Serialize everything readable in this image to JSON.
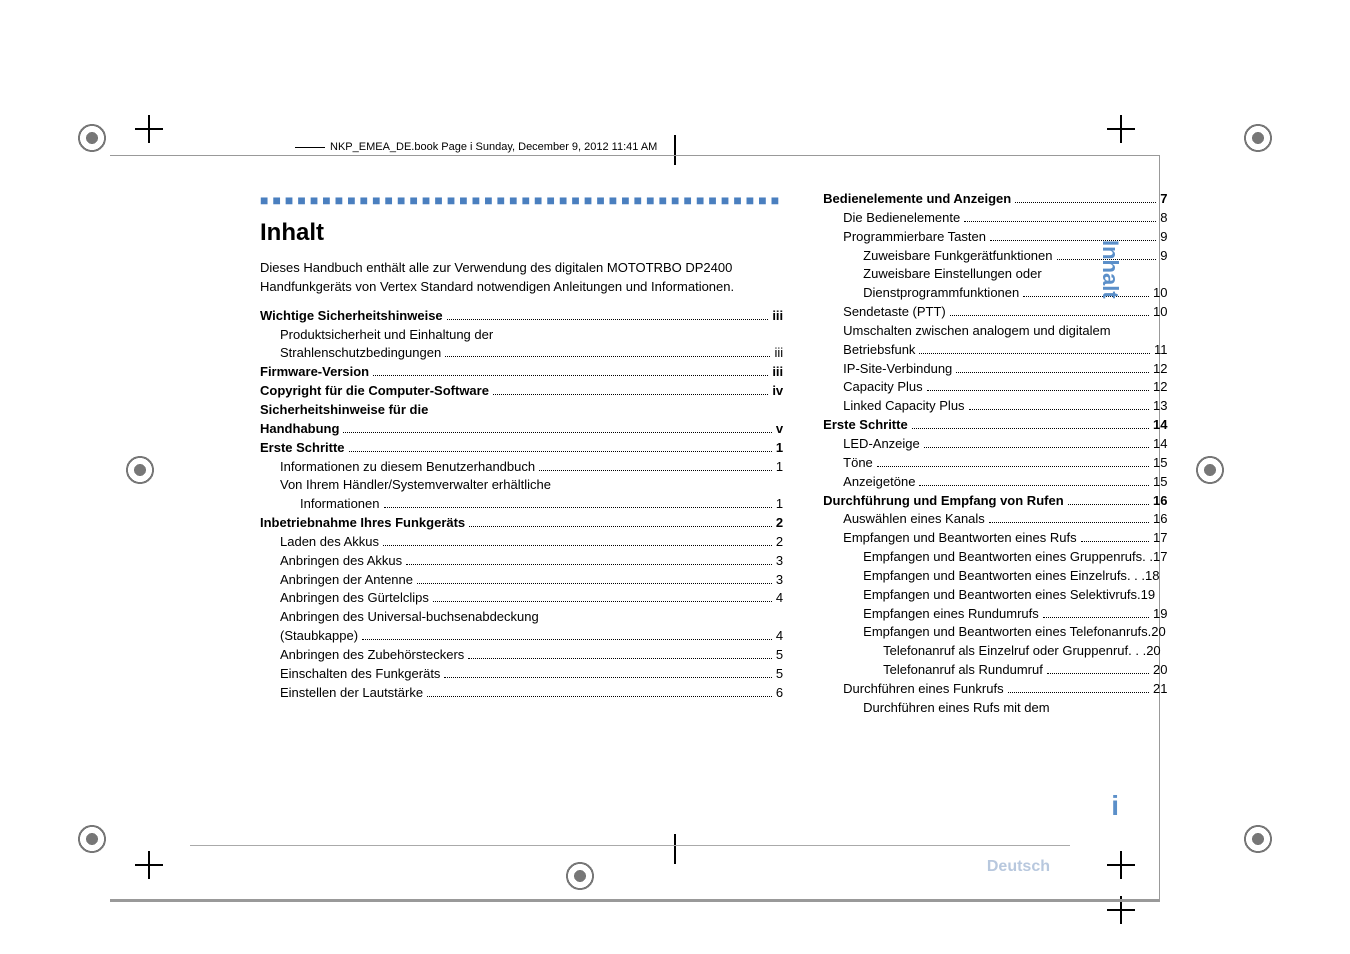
{
  "running_head": "NKP_EMEA_DE.book  Page i  Sunday, December 9, 2012  11:41 AM",
  "side_tab_title": "Inhalt",
  "side_page_num": "i",
  "lang_footer": "Deutsch",
  "colors": {
    "accent": "#5b8fc9",
    "deco_squares": "#4a7fbf",
    "footer_text": "#b8c8de"
  },
  "left_col": {
    "heading": "Inhalt",
    "intro": "Dieses Handbuch enthält alle zur Verwendung des digitalen MOTOTRBO DP2400 Handfunkgeräts von Vertex Standard notwendigen Anleitungen und Informationen.",
    "entries": [
      {
        "label": "Wichtige Sicherheitshinweise",
        "page": "iii",
        "level": 0,
        "bold": true
      },
      {
        "label": "Produktsicherheit und Einhaltung der",
        "page": "",
        "level": 1,
        "bold": false,
        "no_page": true
      },
      {
        "label": "Strahlenschutzbedingungen",
        "page": "iii",
        "level": 1,
        "bold": false,
        "cont": true
      },
      {
        "label": "Firmware-Version",
        "page": "iii",
        "level": 0,
        "bold": true
      },
      {
        "label": "Copyright für die Computer-Software",
        "page": "iv",
        "level": 0,
        "bold": true
      },
      {
        "label": "Sicherheitshinweise für die",
        "page": "",
        "level": 0,
        "bold": true,
        "no_page": true
      },
      {
        "label": "Handhabung",
        "page": "v",
        "level": 0,
        "bold": true,
        "cont": true
      },
      {
        "label": "Erste Schritte",
        "page": "1",
        "level": 0,
        "bold": true
      },
      {
        "label": "Informationen zu diesem Benutzerhandbuch",
        "page": "1",
        "level": 1,
        "bold": false
      },
      {
        "label": "Von Ihrem Händler/Systemverwalter erhältliche",
        "page": "",
        "level": 1,
        "bold": false,
        "no_page": true
      },
      {
        "label": "Informationen",
        "page": "1",
        "level": 2,
        "bold": false,
        "cont": true
      },
      {
        "label": "Inbetriebnahme Ihres Funkgeräts",
        "page": "2",
        "level": 0,
        "bold": true
      },
      {
        "label": "Laden des Akkus",
        "page": "2",
        "level": 1,
        "bold": false
      },
      {
        "label": "Anbringen des Akkus",
        "page": "3",
        "level": 1,
        "bold": false
      },
      {
        "label": "Anbringen der Antenne",
        "page": "3",
        "level": 1,
        "bold": false
      },
      {
        "label": "Anbringen des Gürtelclips",
        "page": "4",
        "level": 1,
        "bold": false
      },
      {
        "label": "Anbringen des Universal-buchsenabdeckung",
        "page": "",
        "level": 1,
        "bold": false,
        "no_page": true
      },
      {
        "label": "(Staubkappe)",
        "page": "4",
        "level": 1,
        "bold": false,
        "cont": true
      },
      {
        "label": "Anbringen des Zubehörsteckers",
        "page": "5",
        "level": 1,
        "bold": false
      },
      {
        "label": "Einschalten des Funkgeräts",
        "page": "5",
        "level": 1,
        "bold": false
      },
      {
        "label": "Einstellen der Lautstärke",
        "page": "6",
        "level": 1,
        "bold": false
      }
    ]
  },
  "right_col": {
    "entries": [
      {
        "label": "Bedienelemente und Anzeigen",
        "page": "7",
        "level": 0,
        "bold": true
      },
      {
        "label": "Die Bedienelemente",
        "page": "8",
        "level": 1,
        "bold": false
      },
      {
        "label": "Programmierbare Tasten",
        "page": "9",
        "level": 1,
        "bold": false
      },
      {
        "label": "Zuweisbare Funkgerätfunktionen",
        "page": "9",
        "level": 2,
        "bold": false
      },
      {
        "label": "Zuweisbare Einstellungen oder",
        "page": "",
        "level": 2,
        "bold": false,
        "no_page": true
      },
      {
        "label": "Dienstprogrammfunktionen",
        "page": "10",
        "level": 2,
        "bold": false,
        "cont": true
      },
      {
        "label": "Sendetaste (PTT)",
        "page": "10",
        "level": 1,
        "bold": false
      },
      {
        "label": "Umschalten zwischen analogem und digitalem",
        "page": "",
        "level": 1,
        "bold": false,
        "no_page": true
      },
      {
        "label": "Betriebsfunk",
        "page": "11",
        "level": 1,
        "bold": false,
        "cont": true
      },
      {
        "label": "IP-Site-Verbindung",
        "page": "12",
        "level": 1,
        "bold": false
      },
      {
        "label": "Capacity Plus",
        "page": "12",
        "level": 1,
        "bold": false
      },
      {
        "label": "Linked Capacity Plus",
        "page": "13",
        "level": 1,
        "bold": false
      },
      {
        "label": "Erste Schritte",
        "page": "14",
        "level": 0,
        "bold": true
      },
      {
        "label": "LED-Anzeige",
        "page": "14",
        "level": 1,
        "bold": false
      },
      {
        "label": "Töne",
        "page": "15",
        "level": 1,
        "bold": false
      },
      {
        "label": "Anzeigetöne",
        "page": "15",
        "level": 1,
        "bold": false
      },
      {
        "label": "Durchführung und Empfang von Rufen",
        "page": "16",
        "level": 0,
        "bold": true
      },
      {
        "label": "Auswählen eines Kanals",
        "page": "16",
        "level": 1,
        "bold": false
      },
      {
        "label": "Empfangen und Beantworten eines Rufs",
        "page": "17",
        "level": 1,
        "bold": false
      },
      {
        "label": "Empfangen und Beantworten eines Gruppenrufs",
        "page": "17",
        "level": 2,
        "bold": false,
        "sep": " . . "
      },
      {
        "label": "Empfangen und Beantworten eines Einzelrufs",
        "page": "18",
        "level": 2,
        "bold": false,
        "sep": "  . . .  "
      },
      {
        "label": "Empfangen und Beantworten eines Selektivrufs",
        "page": "19",
        "level": 2,
        "bold": false,
        "sep": "  .  "
      },
      {
        "label": "Empfangen eines Rundumrufs",
        "page": "19",
        "level": 2,
        "bold": false
      },
      {
        "label": "Empfangen und Beantworten eines Telefonanrufs",
        "page": "20",
        "level": 2,
        "bold": false,
        "sep": " . "
      },
      {
        "label": "Telefonanruf als Einzelruf oder Gruppenruf",
        "page": "20",
        "level": 3,
        "bold": false,
        "sep": " . . . "
      },
      {
        "label": "Telefonanruf als Rundumruf",
        "page": "20",
        "level": 3,
        "bold": false
      },
      {
        "label": "Durchführen eines Funkrufs",
        "page": "21",
        "level": 1,
        "bold": false
      },
      {
        "label": "Durchführen eines Rufs mit dem",
        "page": "",
        "level": 2,
        "bold": false,
        "no_page": true
      }
    ]
  }
}
